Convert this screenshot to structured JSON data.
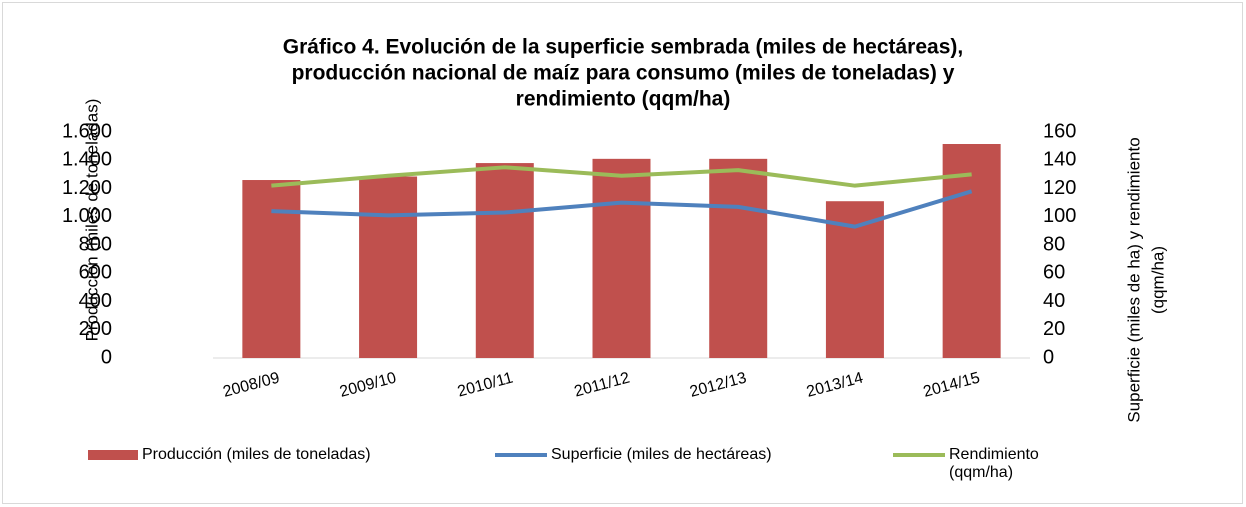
{
  "chart_data": {
    "type": "bar-line",
    "title": [
      "Gráfico 4. Evolución de la superficie sembrada (miles de hectáreas),",
      "producción nacional de maíz para consumo (miles de toneladas) y",
      "rendimiento (qqm/ha)"
    ],
    "ylabel": "Producción (miles de toneladas)",
    "y2label": [
      "Superficie (miles de ha) y rendimiento",
      "(qqm/ha)"
    ],
    "categories": [
      "2008/09",
      "2009/10",
      "2010/11",
      "2011/12",
      "2012/13",
      "2013/14",
      "2014/15"
    ],
    "series": [
      {
        "name": "Producción (miles de toneladas)",
        "type": "bar",
        "color": "#c0504d",
        "values": [
          1260,
          1285,
          1380,
          1410,
          1410,
          1110,
          1515
        ]
      },
      {
        "name": "Superficie (miles de hectáreas)",
        "type": "line",
        "axis": "y2",
        "color": "#4f81bd",
        "values": [
          104,
          101,
          103,
          110,
          107,
          93,
          118
        ]
      },
      {
        "name": "Rendimiento (qqm/ha)",
        "type": "line",
        "axis": "y2",
        "color": "#9bbb59",
        "values": [
          122,
          129,
          135,
          129,
          133,
          122,
          130
        ]
      }
    ],
    "ylim": [
      0,
      1600
    ],
    "yticks": [
      0,
      {
        "value": 200,
        "label": "200"
      },
      {
        "value": 400,
        "label": "400"
      },
      {
        "value": 600,
        "label": "600"
      },
      {
        "value": 800,
        "label": "800"
      },
      {
        "value": 1000,
        "label": "1.000"
      },
      {
        "value": 1200,
        "label": "1.200"
      },
      {
        "value": 1400,
        "label": "1.400"
      },
      {
        "value": 1600,
        "label": "1.600"
      }
    ],
    "y2lim": [
      0,
      160
    ],
    "y2ticks": [
      0,
      20,
      40,
      60,
      80,
      100,
      120,
      140,
      160
    ],
    "legend": "bottom"
  }
}
